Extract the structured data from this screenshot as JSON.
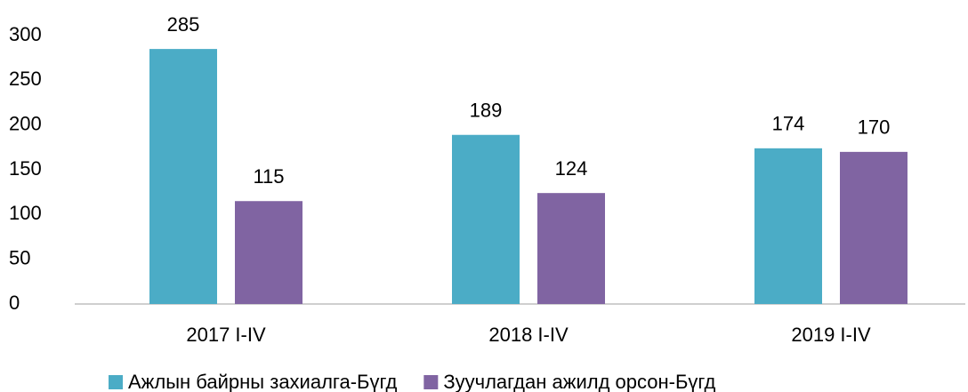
{
  "chart_data": {
    "type": "bar",
    "categories": [
      "2017 I-IV",
      "2018 I-IV",
      "2019 I-IV"
    ],
    "series": [
      {
        "name": "Ажлын байрны захиалга-Бүгд",
        "color": "#4bacc6",
        "values": [
          285,
          189,
          174
        ]
      },
      {
        "name": "Зуучлагдан ажилд орсон-Бүгд",
        "color": "#8064a2",
        "values": [
          115,
          124,
          170
        ]
      }
    ],
    "ylim": [
      0,
      300
    ],
    "yticks": [
      0,
      50,
      100,
      150,
      200,
      250,
      300
    ],
    "grid": false,
    "legend": "bottom"
  }
}
